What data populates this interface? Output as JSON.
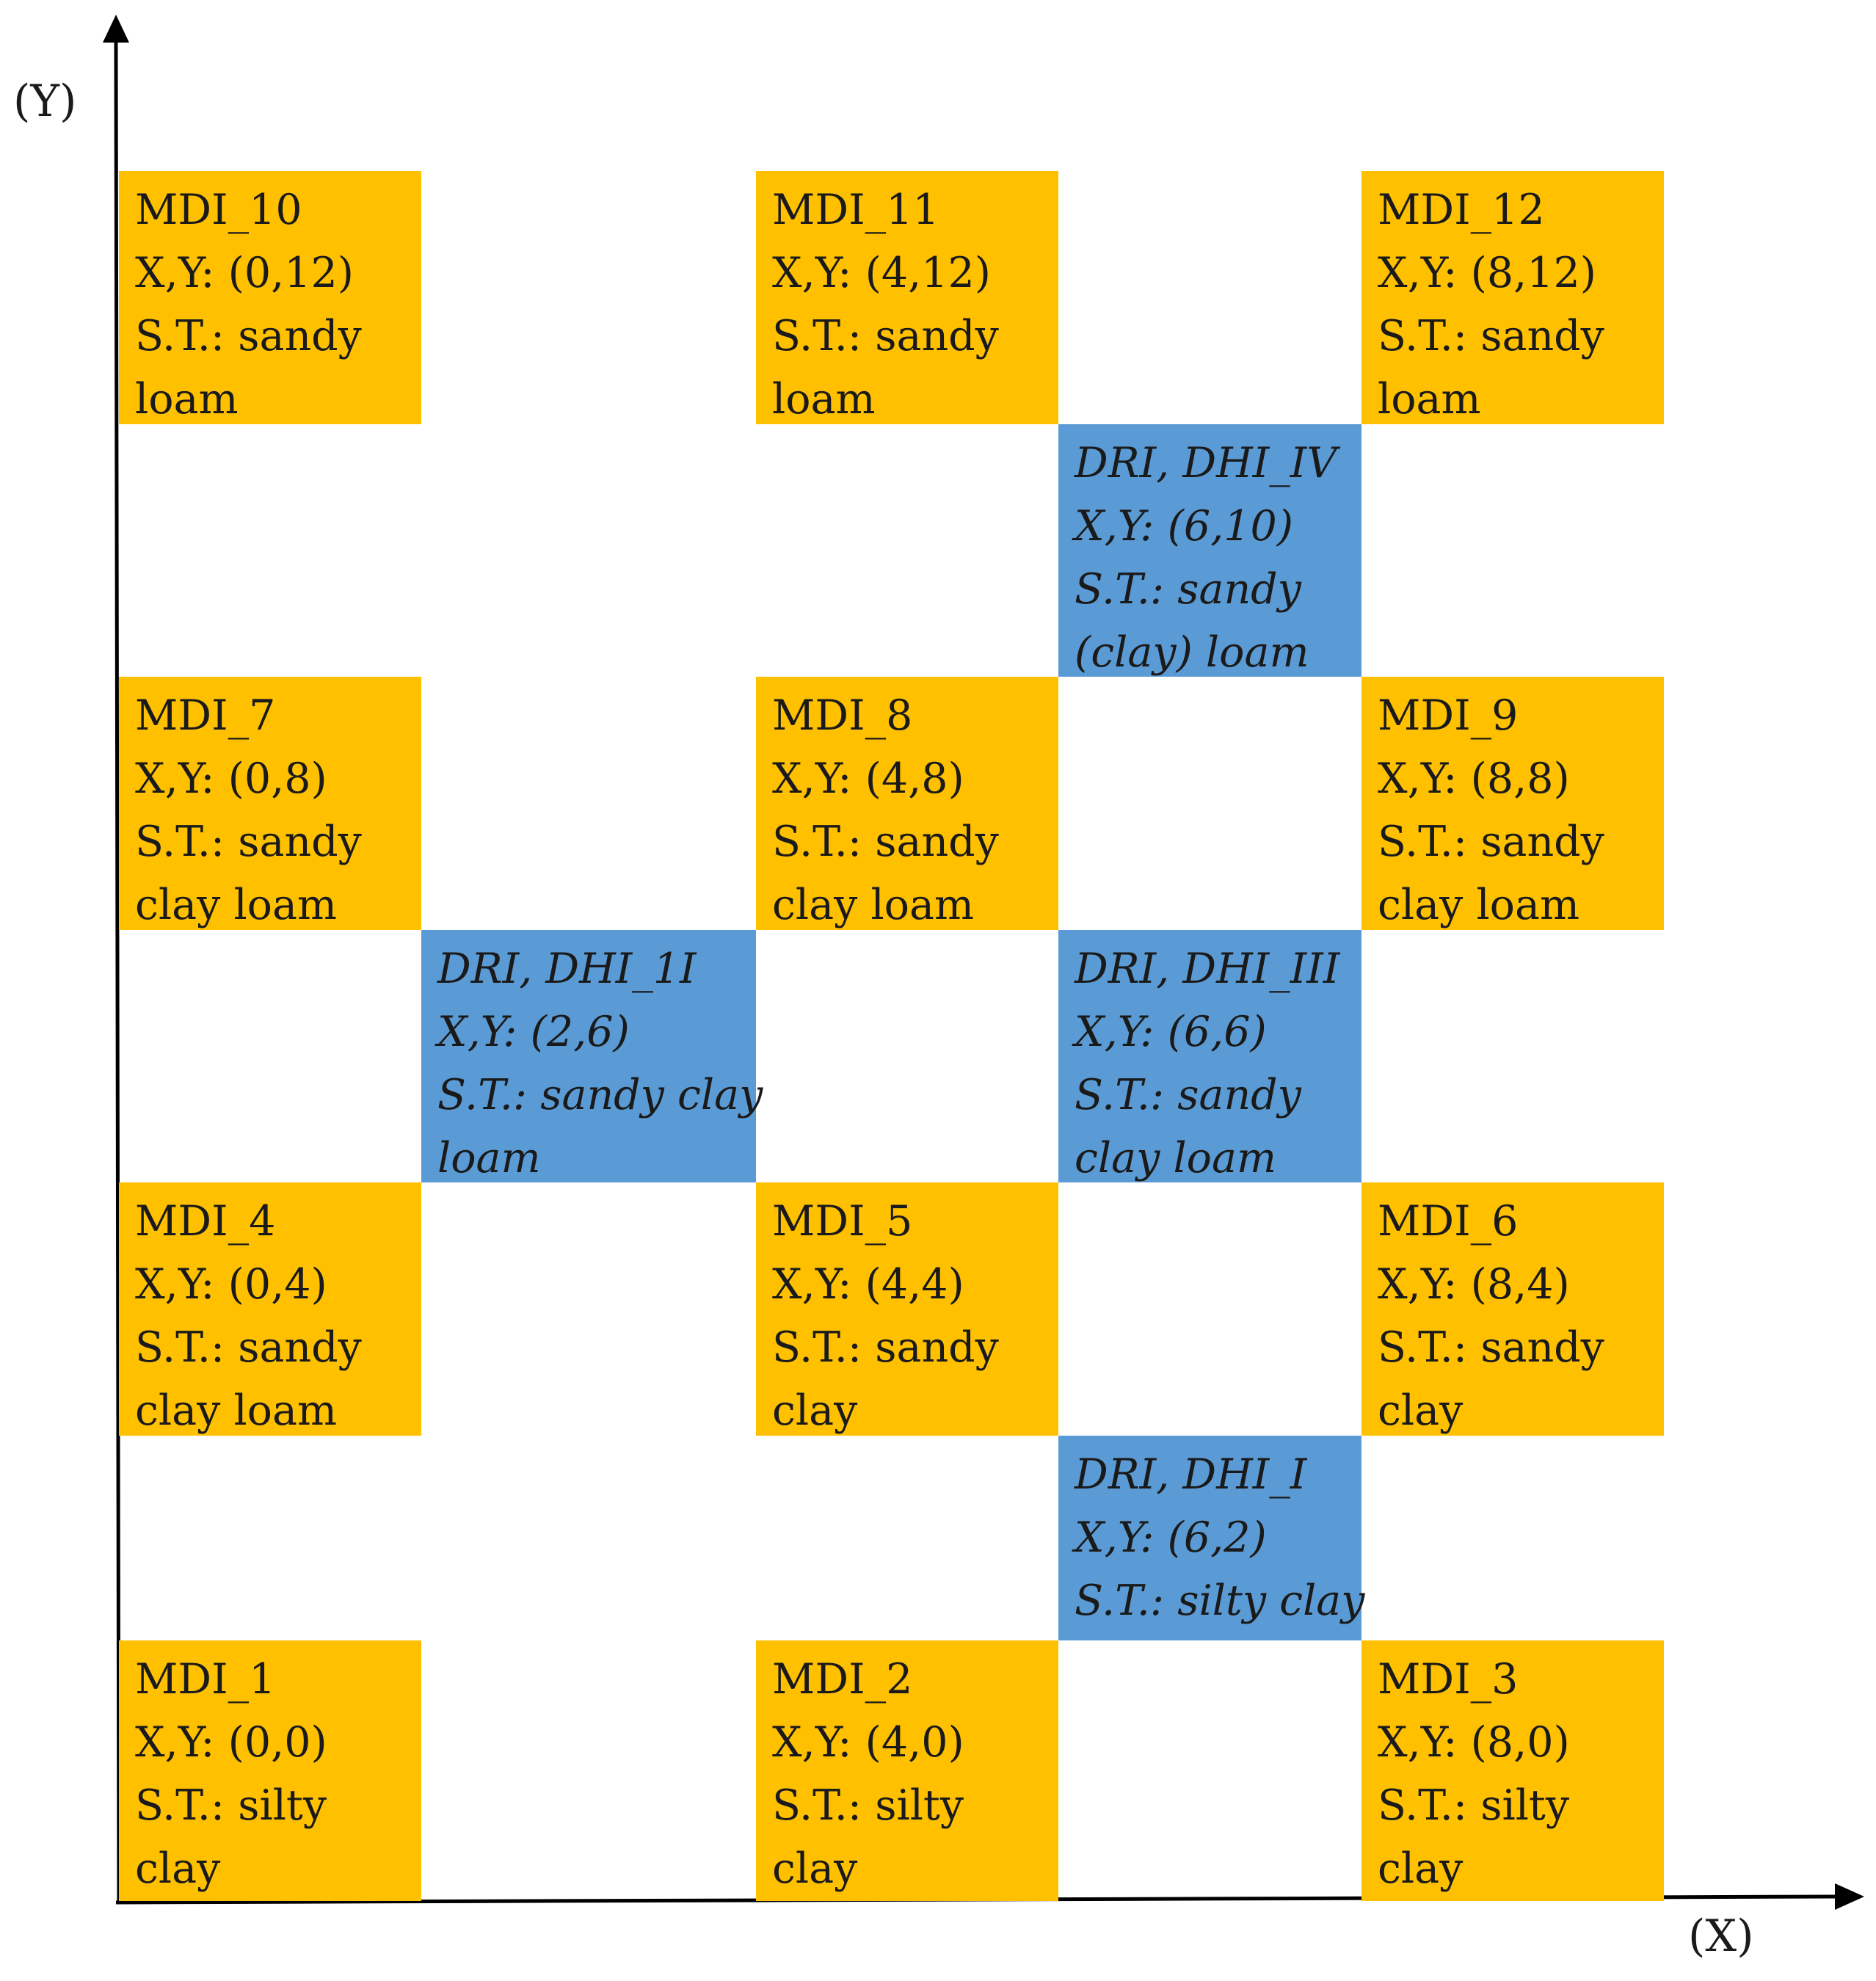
{
  "axes": {
    "x_label": "(X)",
    "y_label": "(Y)"
  },
  "colors": {
    "mdi": "#ffc000",
    "dri": "#5b9bd5",
    "axis": "#000000"
  },
  "cells": [
    {
      "id": "MDI_10",
      "kind": "mdi",
      "lines": [
        "MDI_10",
        "X,Y: (0,12)",
        "S.T.: sandy",
        "loam"
      ]
    },
    {
      "id": "MDI_11",
      "kind": "mdi",
      "lines": [
        "MDI_11",
        "X,Y: (4,12)",
        "S.T.: sandy",
        "loam"
      ]
    },
    {
      "id": "MDI_12",
      "kind": "mdi",
      "lines": [
        "MDI_12",
        "X,Y: (8,12)",
        "S.T.: sandy",
        "loam"
      ]
    },
    {
      "id": "DHI_IV",
      "kind": "dri",
      "lines": [
        "DRI, DHI_IV",
        "X,Y: (6,10)",
        "S.T.: sandy",
        "(clay) loam"
      ]
    },
    {
      "id": "MDI_7",
      "kind": "mdi",
      "lines": [
        "MDI_7",
        "X,Y: (0,8)",
        "S.T.: sandy",
        "clay loam"
      ]
    },
    {
      "id": "MDI_8",
      "kind": "mdi",
      "lines": [
        "MDI_8",
        "X,Y: (4,8)",
        "S.T.: sandy",
        "clay loam"
      ]
    },
    {
      "id": "MDI_9",
      "kind": "mdi",
      "lines": [
        "MDI_9",
        "X,Y: (8,8)",
        "S.T.: sandy",
        "clay loam"
      ]
    },
    {
      "id": "DHI_1I",
      "kind": "dri",
      "lines": [
        "DRI, DHI_1I",
        "X,Y: (2,6)",
        "S.T.: sandy clay",
        "loam"
      ]
    },
    {
      "id": "DHI_III",
      "kind": "dri",
      "lines": [
        "DRI, DHI_III",
        "X,Y: (6,6)",
        "S.T.: sandy",
        "clay loam"
      ]
    },
    {
      "id": "MDI_4",
      "kind": "mdi",
      "lines": [
        "MDI_4",
        "X,Y: (0,4)",
        "S.T.: sandy",
        "clay loam"
      ]
    },
    {
      "id": "MDI_5",
      "kind": "mdi",
      "lines": [
        "MDI_5",
        "X,Y: (4,4)",
        "S.T.: sandy",
        "clay"
      ]
    },
    {
      "id": "MDI_6",
      "kind": "mdi",
      "lines": [
        "MDI_6",
        "X,Y: (8,4)",
        "S.T.: sandy",
        "clay"
      ]
    },
    {
      "id": "DHI_I",
      "kind": "dri",
      "lines": [
        "DRI, DHI_I",
        "X,Y: (6,2)",
        "S.T.: silty clay"
      ]
    },
    {
      "id": "MDI_1",
      "kind": "mdi",
      "lines": [
        "MDI_1",
        "X,Y: (0,0)",
        "S.T.: silty",
        "clay"
      ]
    },
    {
      "id": "MDI_2",
      "kind": "mdi",
      "lines": [
        "MDI_2",
        "X,Y: (4,0)",
        "S.T.: silty",
        "clay"
      ]
    },
    {
      "id": "MDI_3",
      "kind": "mdi",
      "lines": [
        "MDI_3",
        "X,Y: (8,0)",
        "S.T.: silty",
        "clay"
      ]
    }
  ]
}
